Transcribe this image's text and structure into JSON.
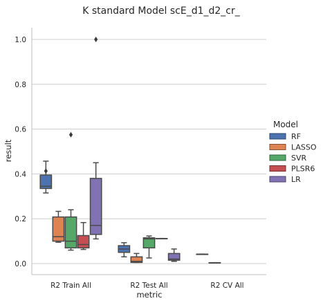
{
  "chart_data": {
    "type": "box",
    "title": "K standard Model scE_d1_d2_cr_",
    "xlabel": "metric",
    "ylabel": "result",
    "ylim": [
      -0.05,
      1.05
    ],
    "yticks": [
      0.0,
      0.2,
      0.4,
      0.6,
      0.8,
      1.0
    ],
    "ytick_labels": [
      "0.0",
      "0.2",
      "0.4",
      "0.6",
      "0.8",
      "1.0"
    ],
    "grid": "horizontal",
    "legend": {
      "title": "Model",
      "placement": "right"
    },
    "categories": [
      "R2 Train All",
      "R2 Test All",
      "R2 CV All"
    ],
    "series": [
      {
        "name": "RF",
        "color": "#4c72b0",
        "boxes": [
          {
            "whislo": 0.315,
            "q1": 0.335,
            "med": 0.345,
            "q3": 0.395,
            "whishi": 0.457,
            "fliers": [
              0.413
            ]
          },
          {
            "whislo": 0.03,
            "q1": 0.05,
            "med": 0.065,
            "q3": 0.08,
            "whishi": 0.093,
            "fliers": []
          },
          {
            "whislo": 0.042,
            "q1": 0.042,
            "med": 0.042,
            "q3": 0.042,
            "whishi": 0.042,
            "fliers": []
          }
        ]
      },
      {
        "name": "LASSO",
        "color": "#dd8452",
        "boxes": [
          {
            "whislo": 0.095,
            "q1": 0.1,
            "med": 0.12,
            "q3": 0.208,
            "whishi": 0.233,
            "fliers": []
          },
          {
            "whislo": 0.005,
            "q1": 0.005,
            "med": 0.01,
            "q3": 0.03,
            "whishi": 0.045,
            "fliers": []
          },
          {
            "whislo": 0.004,
            "q1": 0.004,
            "med": 0.004,
            "q3": 0.004,
            "whishi": 0.004,
            "fliers": []
          }
        ]
      },
      {
        "name": "SVR",
        "color": "#55a868",
        "boxes": [
          {
            "whislo": 0.06,
            "q1": 0.07,
            "med": 0.1,
            "q3": 0.208,
            "whishi": 0.24,
            "fliers": [
              0.575
            ]
          },
          {
            "whislo": 0.025,
            "q1": 0.07,
            "med": 0.11,
            "q3": 0.115,
            "whishi": 0.123,
            "fliers": []
          },
          null
        ]
      },
      {
        "name": "PLSR6",
        "color": "#c44e52",
        "boxes": [
          {
            "whislo": 0.063,
            "q1": 0.07,
            "med": 0.085,
            "q3": 0.125,
            "whishi": 0.183,
            "fliers": []
          },
          {
            "whislo": 0.112,
            "q1": 0.112,
            "med": 0.112,
            "q3": 0.112,
            "whishi": 0.112,
            "fliers": []
          },
          null
        ]
      },
      {
        "name": "LR",
        "color": "#8172b3",
        "boxes": [
          {
            "whislo": 0.11,
            "q1": 0.13,
            "med": 0.17,
            "q3": 0.38,
            "whishi": 0.45,
            "fliers": [
              1.0
            ]
          },
          {
            "whislo": 0.01,
            "q1": 0.015,
            "med": 0.02,
            "q3": 0.045,
            "whishi": 0.065,
            "fliers": []
          },
          null
        ]
      }
    ]
  }
}
